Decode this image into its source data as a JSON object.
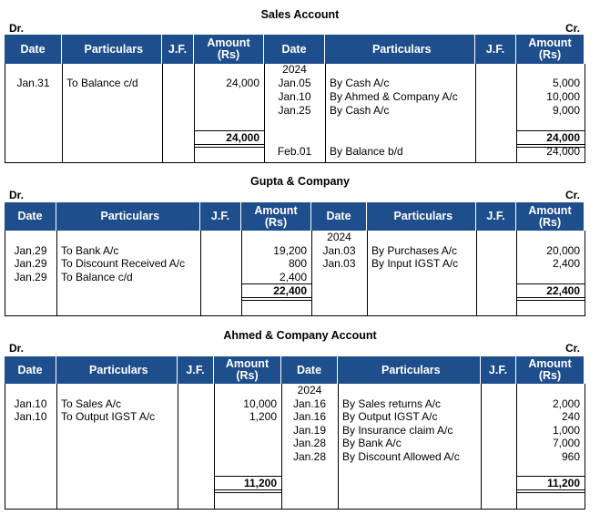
{
  "accounts": [
    {
      "title": "Sales Account",
      "dr": "Dr.",
      "cr": "Cr.",
      "headers": [
        "Date",
        "Particulars",
        "J.F.",
        "Amount (Rs)",
        "Date",
        "Particulars",
        "J.F.",
        "Amount (Rs)"
      ],
      "year": "2024",
      "debit": [
        {
          "date": "Jan.31",
          "particulars": "To Balance c/d",
          "amount": "24,000"
        }
      ],
      "credit": [
        {
          "date": "Jan.05",
          "particulars": "By Cash A/c",
          "amount": "5,000"
        },
        {
          "date": "Jan.10",
          "particulars": "By Ahmed & Company A/c",
          "amount": "10,000"
        },
        {
          "date": "Jan.25",
          "particulars": "By Cash A/c",
          "amount": "9,000"
        }
      ],
      "debit_total": "24,000",
      "credit_total": "24,000",
      "credit_after": [
        {
          "date": "Feb.01",
          "particulars": "By Balance b/d",
          "amount": "24,000"
        }
      ]
    },
    {
      "title": "Gupta & Company",
      "dr": "Dr.",
      "cr": "Cr.",
      "headers": [
        "Date",
        "Particulars",
        "J.F.",
        "Amount (Rs)",
        "Date",
        "Particulars",
        "J.F.",
        "Amount (Rs)"
      ],
      "year": "2024",
      "debit": [
        {
          "date": "Jan.29",
          "particulars": "To Bank A/c",
          "amount": "19,200"
        },
        {
          "date": "Jan.29",
          "particulars": "To Discount Received A/c",
          "amount": "800"
        },
        {
          "date": "Jan.29",
          "particulars": "To Balance c/d",
          "amount": "2,400"
        }
      ],
      "credit": [
        {
          "date": "Jan.03",
          "particulars": "By Purchases A/c",
          "amount": "20,000"
        },
        {
          "date": "Jan.03",
          "particulars": "By Input IGST A/c",
          "amount": "2,400"
        }
      ],
      "debit_total": "22,400",
      "credit_total": "22,400",
      "credit_after": []
    },
    {
      "title": "Ahmed & Company Account",
      "dr": "Dr.",
      "cr": "Cr.",
      "headers": [
        "Date",
        "Particulars",
        "J.F.",
        "Amount (Rs)",
        "Date",
        "Particulars",
        "J.F.",
        "Amount (Rs)"
      ],
      "year": "2024",
      "debit": [
        {
          "date": "Jan.10",
          "particulars": "To Sales A/c",
          "amount": "10,000"
        },
        {
          "date": "Jan.10",
          "particulars": "To Output IGST A/c",
          "amount": "1,200"
        }
      ],
      "credit": [
        {
          "date": "Jan.16",
          "particulars": "By Sales returns A/c",
          "amount": "2,000"
        },
        {
          "date": "Jan.16",
          "particulars": "By Output IGST A/c",
          "amount": "240"
        },
        {
          "date": "Jan.19",
          "particulars": "By Insurance claim A/c",
          "amount": "1,000"
        },
        {
          "date": "Jan.28",
          "particulars": "By Bank A/c",
          "amount": "7,000"
        },
        {
          "date": "Jan.28",
          "particulars": "By Discount Allowed A/c",
          "amount": "960"
        }
      ],
      "debit_total": "11,200",
      "credit_total": "11,200",
      "credit_after": []
    }
  ]
}
